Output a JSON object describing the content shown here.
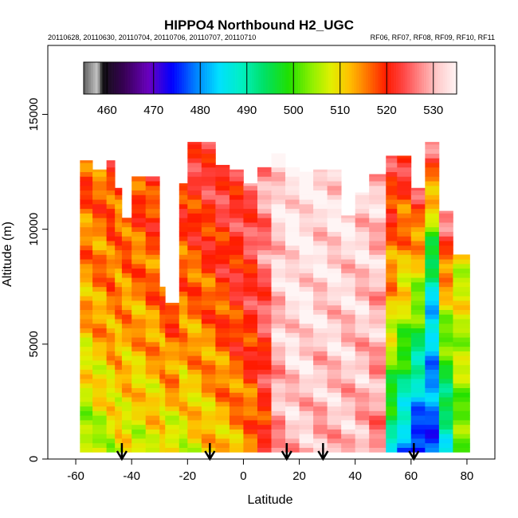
{
  "chart_data": {
    "type": "heatmap",
    "title": "HIPPO4 Northbound H2_UGC",
    "subtitle_left": "20110628, 20110630, 20110704, 20110706, 20110707, 20110710",
    "subtitle_right": "RF06, RF07, RF08, RF09, RF10, RF11",
    "xlabel": "Latitude",
    "ylabel": "Altitude (m)",
    "xlim": [
      -70,
      90
    ],
    "ylim": [
      0,
      18000
    ],
    "x_ticks": [
      -60,
      -40,
      -20,
      0,
      20,
      40,
      60,
      80
    ],
    "y_ticks": [
      0,
      5000,
      10000,
      15000
    ],
    "colorbar": {
      "range": [
        455,
        535
      ],
      "ticks": [
        460,
        470,
        480,
        490,
        500,
        510,
        520,
        530
      ],
      "stops": [
        {
          "v": 455,
          "c": "#606060"
        },
        {
          "v": 458,
          "c": "#c8c8c8"
        },
        {
          "v": 459,
          "c": "#101010"
        },
        {
          "v": 464,
          "c": "#3a005a"
        },
        {
          "v": 469,
          "c": "#6a00c0"
        },
        {
          "v": 474,
          "c": "#0000ff"
        },
        {
          "v": 479,
          "c": "#0080ff"
        },
        {
          "v": 484,
          "c": "#00e0ff"
        },
        {
          "v": 489,
          "c": "#00f0c0"
        },
        {
          "v": 494,
          "c": "#00e060"
        },
        {
          "v": 499,
          "c": "#20e000"
        },
        {
          "v": 504,
          "c": "#90f000"
        },
        {
          "v": 508,
          "c": "#e0f000"
        },
        {
          "v": 512,
          "c": "#ffc000"
        },
        {
          "v": 516,
          "c": "#ff7000"
        },
        {
          "v": 520,
          "c": "#ff1a00"
        },
        {
          "v": 524,
          "c": "#ff4c4c"
        },
        {
          "v": 528,
          "c": "#ff9898"
        },
        {
          "v": 531,
          "c": "#ffcccc"
        },
        {
          "v": 535,
          "c": "#fff5f5"
        }
      ]
    },
    "grid": false,
    "columns": [
      {
        "x0": -58.5,
        "x1": -54,
        "top": 13000,
        "v_low": 503,
        "v_mid": 513,
        "v_high": 518
      },
      {
        "x0": -54,
        "x1": -49,
        "top": 12600,
        "v_low": 505,
        "v_mid": 514,
        "v_high": 517
      },
      {
        "x0": -49,
        "x1": -46,
        "top": 13000,
        "v_low": 506,
        "v_mid": 515,
        "v_high": 519
      },
      {
        "x0": -46,
        "x1": -43.5,
        "top": 11800,
        "v_low": 508,
        "v_mid": 514,
        "v_high": 517
      },
      {
        "x0": -43.5,
        "x1": -40,
        "top": 10500,
        "v_low": 508,
        "v_mid": 513,
        "v_high": 518
      },
      {
        "x0": -40,
        "x1": -35,
        "top": 12300,
        "v_low": 507,
        "v_mid": 514,
        "v_high": 519
      },
      {
        "x0": -35,
        "x1": -30,
        "top": 12300,
        "v_low": 508,
        "v_mid": 515,
        "v_high": 520
      },
      {
        "x0": -30,
        "x1": -28,
        "top": 7500,
        "v_low": 508,
        "v_mid": 513,
        "v_high": 518
      },
      {
        "x0": -28,
        "x1": -23,
        "top": 6800,
        "v_low": 506,
        "v_mid": 514,
        "v_high": 518
      },
      {
        "x0": -23,
        "x1": -20,
        "top": 12000,
        "v_low": 507,
        "v_mid": 515,
        "v_high": 520
      },
      {
        "x0": -20,
        "x1": -15,
        "top": 13800,
        "v_low": 509,
        "v_mid": 516,
        "v_high": 523
      },
      {
        "x0": -15,
        "x1": -10,
        "top": 13800,
        "v_low": 510,
        "v_mid": 517,
        "v_high": 524
      },
      {
        "x0": -10,
        "x1": -5,
        "top": 12800,
        "v_low": 511,
        "v_mid": 518,
        "v_high": 524
      },
      {
        "x0": -5,
        "x1": 0,
        "top": 12600,
        "v_low": 512,
        "v_mid": 520,
        "v_high": 523
      },
      {
        "x0": 0,
        "x1": 5,
        "top": 12000,
        "v_low": 514,
        "v_mid": 521,
        "v_high": 525
      },
      {
        "x0": 5,
        "x1": 10,
        "top": 12700,
        "v_low": 519,
        "v_mid": 524,
        "v_high": 529
      },
      {
        "x0": 10,
        "x1": 15,
        "top": 13300,
        "v_low": 528,
        "v_mid": 531,
        "v_high": 533
      },
      {
        "x0": 15,
        "x1": 20,
        "top": 12700,
        "v_low": 530,
        "v_mid": 533,
        "v_high": 534
      },
      {
        "x0": 20,
        "x1": 25,
        "top": 12500,
        "v_low": 530,
        "v_mid": 533,
        "v_high": 534
      },
      {
        "x0": 25,
        "x1": 30,
        "top": 12600,
        "v_low": 529,
        "v_mid": 532,
        "v_high": 533
      },
      {
        "x0": 30,
        "x1": 35,
        "top": 12600,
        "v_low": 530,
        "v_mid": 532,
        "v_high": 533
      },
      {
        "x0": 35,
        "x1": 40,
        "top": 10600,
        "v_low": 530,
        "v_mid": 531,
        "v_high": 533
      },
      {
        "x0": 40,
        "x1": 45,
        "top": 11600,
        "v_low": 529,
        "v_mid": 531,
        "v_high": 532
      },
      {
        "x0": 45,
        "x1": 51,
        "top": 12400,
        "v_low": 527,
        "v_mid": 530,
        "v_high": 531
      },
      {
        "x0": 51,
        "x1": 55,
        "top": 13200,
        "v_low": 488,
        "v_mid": 512,
        "v_high": 523
      },
      {
        "x0": 55,
        "x1": 60,
        "top": 13200,
        "v_low": 478,
        "v_mid": 508,
        "v_high": 523
      },
      {
        "x0": 60,
        "x1": 65,
        "top": 11800,
        "v_low": 470,
        "v_mid": 500,
        "v_high": 524
      },
      {
        "x0": 65,
        "x1": 70,
        "top": 13800,
        "v_low": 476,
        "v_mid": 485,
        "v_high": 527
      },
      {
        "x0": 70,
        "x1": 75,
        "top": 10800,
        "v_low": 486,
        "v_mid": 503,
        "v_high": 528
      },
      {
        "x0": 75,
        "x1": 81,
        "top": 8900,
        "v_low": 500,
        "v_mid": 506,
        "v_high": 509
      }
    ],
    "markers": {
      "type": "down-arrows",
      "x": [
        -43.5,
        -12,
        15.5,
        28.5,
        61
      ]
    }
  }
}
